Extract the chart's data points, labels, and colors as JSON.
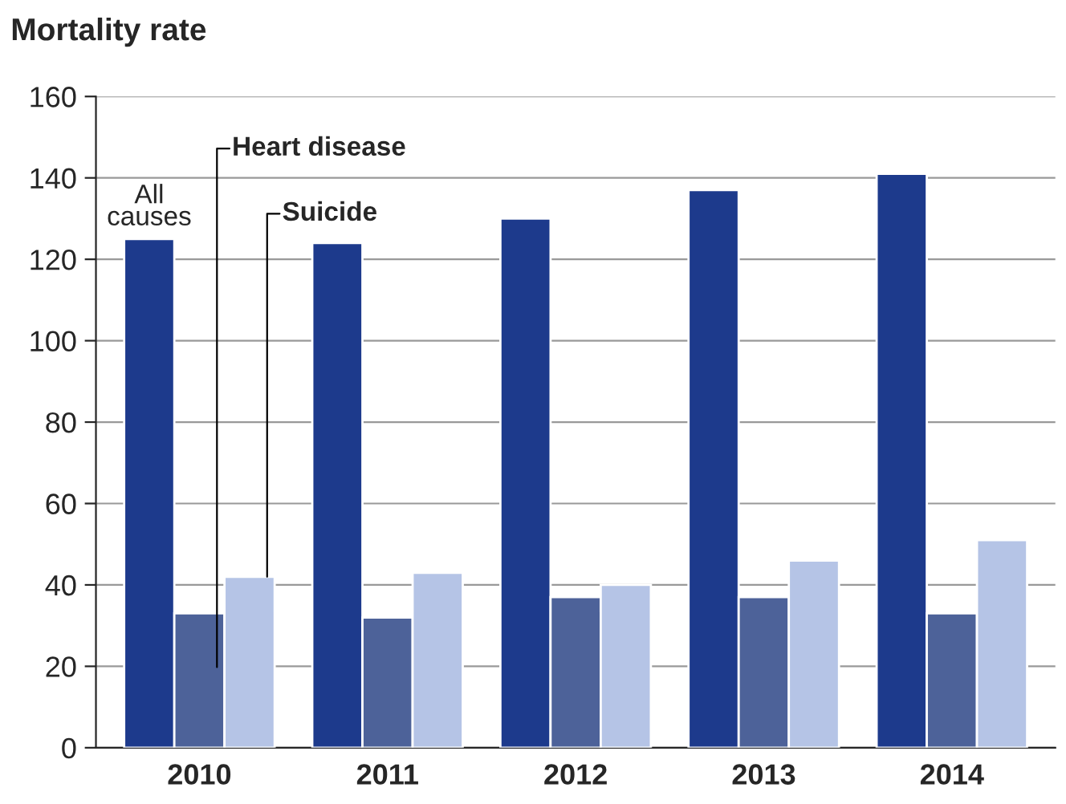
{
  "chart_data": {
    "type": "bar",
    "ylabel": "Mortality rate",
    "categories": [
      "2010",
      "2011",
      "2012",
      "2013",
      "2014"
    ],
    "series": [
      {
        "name": "All causes",
        "color": "#1d3a8c",
        "values": [
          125,
          124,
          130,
          137,
          141
        ]
      },
      {
        "name": "Heart disease",
        "color": "#4d6299",
        "values": [
          33,
          32,
          37,
          37,
          33
        ]
      },
      {
        "name": "Suicide",
        "color": "#b5c4e6",
        "values": [
          42,
          43,
          40,
          46,
          51
        ]
      }
    ],
    "ylim": [
      0,
      160
    ],
    "yticks": [
      0,
      20,
      40,
      60,
      80,
      100,
      120,
      140,
      160
    ],
    "grid": "y",
    "legend": false
  }
}
